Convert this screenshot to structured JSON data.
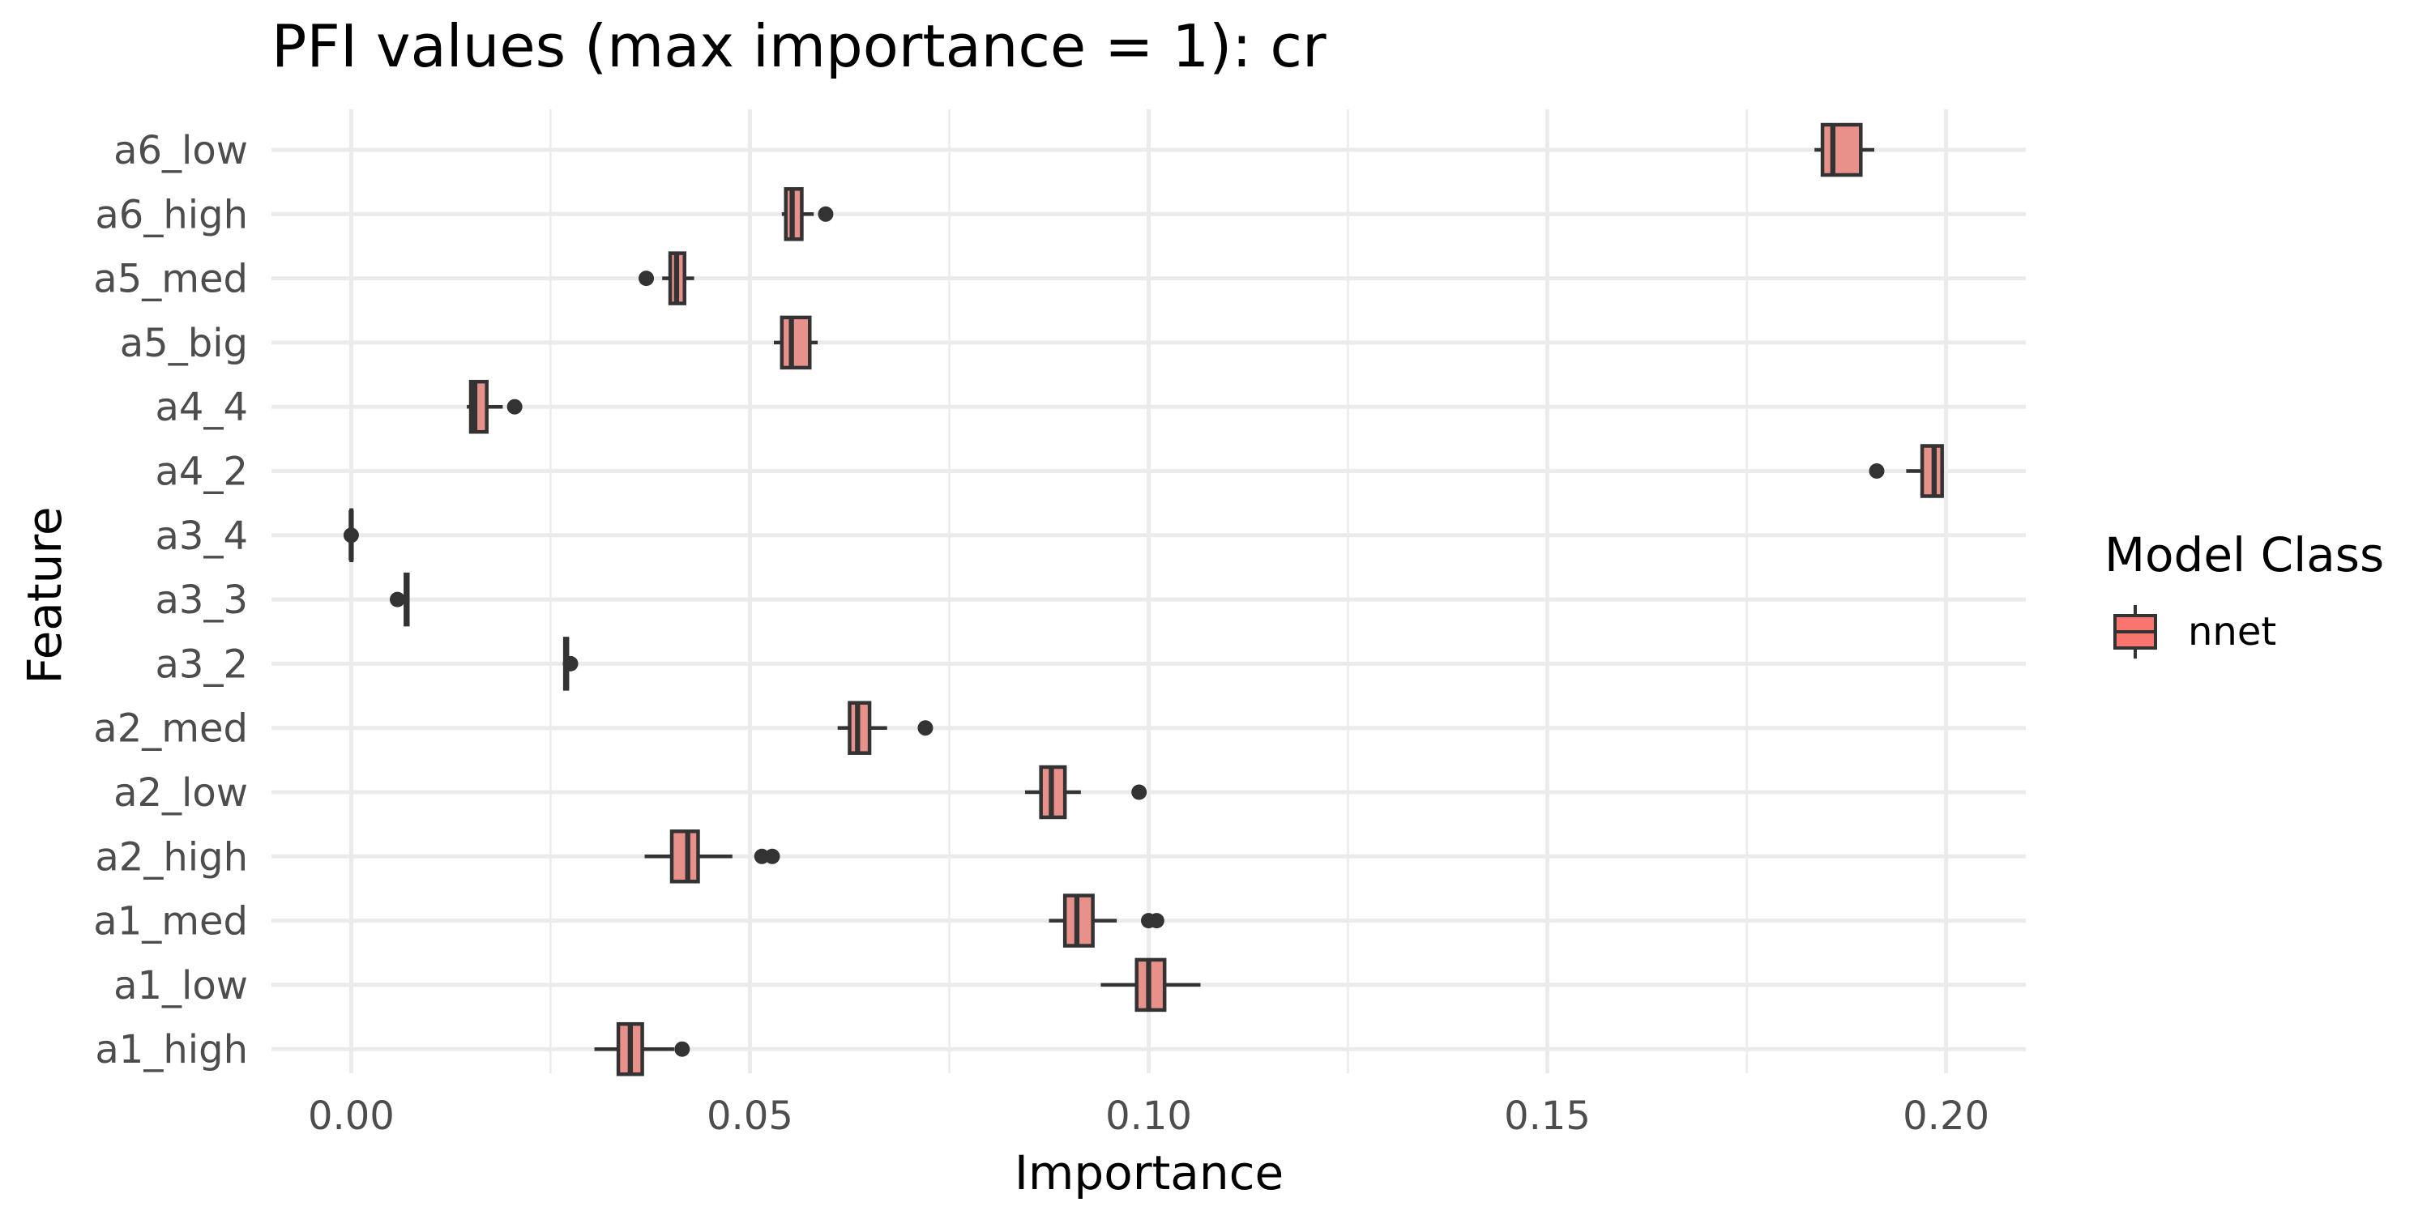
{
  "chart_data": {
    "type": "boxplot",
    "orientation": "horizontal",
    "title": "PFI values (max importance = 1): cr",
    "xlabel": "Importance",
    "ylabel": "Feature",
    "xlim": [
      -0.01,
      0.21
    ],
    "x_ticks": [
      0.0,
      0.05,
      0.1,
      0.15,
      0.2
    ],
    "x_tick_labels": [
      "0.00",
      "0.05",
      "0.10",
      "0.15",
      "0.20"
    ],
    "grid": true,
    "legend": {
      "title": "Model Class",
      "position": "right",
      "entries": [
        {
          "label": "nnet",
          "color": "#f8766d"
        }
      ]
    },
    "fill_color": "#e8918b",
    "line_color": "#333333",
    "categories": [
      "a6_low",
      "a6_high",
      "a5_med",
      "a5_big",
      "a4_4",
      "a4_2",
      "a3_4",
      "a3_3",
      "a3_2",
      "a2_med",
      "a2_low",
      "a2_high",
      "a1_med",
      "a1_low",
      "a1_high"
    ],
    "series": [
      {
        "name": "nnet",
        "boxes": [
          {
            "feature": "a6_low",
            "whisker_low": 0.1835,
            "q1": 0.1845,
            "median": 0.1858,
            "q3": 0.1893,
            "whisker_high": 0.191,
            "outliers": []
          },
          {
            "feature": "a6_high",
            "whisker_low": 0.054,
            "q1": 0.0545,
            "median": 0.0553,
            "q3": 0.0565,
            "whisker_high": 0.058,
            "outliers": [
              0.0595
            ]
          },
          {
            "feature": "a5_med",
            "whisker_low": 0.039,
            "q1": 0.04,
            "median": 0.0408,
            "q3": 0.0418,
            "whisker_high": 0.043,
            "outliers": [
              0.037
            ]
          },
          {
            "feature": "a5_big",
            "whisker_low": 0.053,
            "q1": 0.054,
            "median": 0.0552,
            "q3": 0.0575,
            "whisker_high": 0.0585,
            "outliers": []
          },
          {
            "feature": "a4_4",
            "whisker_low": 0.0145,
            "q1": 0.015,
            "median": 0.0155,
            "q3": 0.017,
            "whisker_high": 0.019,
            "outliers": [
              0.0205
            ]
          },
          {
            "feature": "a4_2",
            "whisker_low": 0.195,
            "q1": 0.197,
            "median": 0.1985,
            "q3": 0.1995,
            "whisker_high": 0.1997,
            "outliers": [
              0.1913
            ]
          },
          {
            "feature": "a3_4",
            "whisker_low": 0.0,
            "q1": 0.0,
            "median": 0.0,
            "q3": 0.0,
            "whisker_high": 0.0,
            "outliers": [
              0.0
            ]
          },
          {
            "feature": "a3_3",
            "whisker_low": 0.0068,
            "q1": 0.0068,
            "median": 0.007,
            "q3": 0.0071,
            "whisker_high": 0.0072,
            "outliers": [
              0.0058
            ]
          },
          {
            "feature": "a3_2",
            "whisker_low": 0.0268,
            "q1": 0.0268,
            "median": 0.027,
            "q3": 0.0271,
            "whisker_high": 0.0272,
            "outliers": [
              0.0275
            ]
          },
          {
            "feature": "a2_med",
            "whisker_low": 0.061,
            "q1": 0.0625,
            "median": 0.0635,
            "q3": 0.065,
            "whisker_high": 0.0672,
            "outliers": [
              0.072
            ]
          },
          {
            "feature": "a2_low",
            "whisker_low": 0.0845,
            "q1": 0.0865,
            "median": 0.0878,
            "q3": 0.0895,
            "whisker_high": 0.0915,
            "outliers": [
              0.0988
            ]
          },
          {
            "feature": "a2_high",
            "whisker_low": 0.0368,
            "q1": 0.0402,
            "median": 0.0422,
            "q3": 0.0435,
            "whisker_high": 0.0478,
            "outliers": [
              0.0515,
              0.0528
            ]
          },
          {
            "feature": "a1_med",
            "whisker_low": 0.0875,
            "q1": 0.0895,
            "median": 0.091,
            "q3": 0.093,
            "whisker_high": 0.096,
            "outliers": [
              0.1,
              0.101
            ]
          },
          {
            "feature": "a1_low",
            "whisker_low": 0.094,
            "q1": 0.0985,
            "median": 0.1,
            "q3": 0.102,
            "whisker_high": 0.1065,
            "outliers": []
          },
          {
            "feature": "a1_high",
            "whisker_low": 0.0305,
            "q1": 0.0335,
            "median": 0.035,
            "q3": 0.0365,
            "whisker_high": 0.0405,
            "outliers": [
              0.0415
            ]
          }
        ]
      }
    ]
  }
}
